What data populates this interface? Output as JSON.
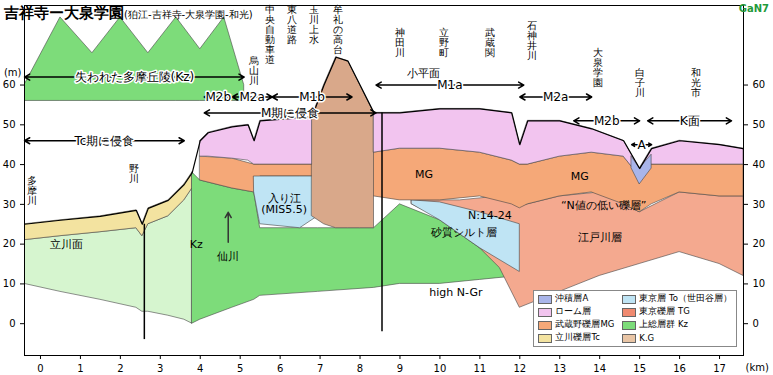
{
  "chart_data": {
    "type": "area",
    "title": "吉祥寺ー大泉学園",
    "subtitle": "(狛江-吉祥寺-大泉学園-和光)",
    "logo": "GaN7",
    "x_label": "(km)",
    "y_label": "(m)",
    "xlim": [
      -0.4,
      17.6
    ],
    "ylim": [
      -8,
      80
    ],
    "xticks": [
      0,
      1,
      2,
      3,
      4,
      5,
      6,
      7,
      8,
      9,
      10,
      11,
      12,
      13,
      14,
      15,
      16,
      17
    ],
    "yticks": [
      0,
      10,
      20,
      30,
      40,
      50,
      60
    ],
    "grid": false,
    "legend": "bottom-right",
    "legend_items": [
      {
        "name": "沖積層A",
        "color": "#a9b5ea"
      },
      {
        "name": "東京層 To（世田谷層）",
        "color": "#bfe4f4"
      },
      {
        "name": "ローム層",
        "color": "#f2c4ef"
      },
      {
        "name": "東京礫層 TG",
        "color": "#f08a70"
      },
      {
        "name": "武蔵野礫層MG",
        "color": "#f5a878"
      },
      {
        "name": "上総層群 Kz",
        "color": "#7ddc7a"
      },
      {
        "name": "立川礫層Tc",
        "color": "#f3e3a0"
      },
      {
        "name": "K.G",
        "color": "#e9c5a5"
      }
    ],
    "layers": [
      {
        "color": "#7ddc7a",
        "x": [
          -0.4,
          0.5,
          1.3,
          2.0,
          2.7,
          3.4,
          4.0,
          4.6,
          5.1
        ],
        "top": [
          60,
          77,
          68,
          77,
          68,
          77,
          69,
          77,
          60
        ],
        "bottom": [
          56,
          56,
          56,
          56,
          56,
          56,
          56,
          56,
          56
        ]
      },
      {
        "color": "#d6f5cf",
        "x": [
          -0.4,
          0.5,
          1.5,
          2.4,
          2.55,
          2.7,
          3.2,
          3.6,
          3.8
        ],
        "top": [
          21,
          22,
          23,
          24,
          22,
          25,
          27,
          31,
          34
        ],
        "bottom": [
          10,
          8,
          6,
          4,
          3,
          3,
          2,
          1,
          0
        ]
      },
      {
        "color": "#f3e3a0",
        "x": [
          -0.4,
          0.5,
          1.5,
          2.4,
          2.55,
          2.7,
          3.2,
          3.6,
          3.8
        ],
        "top": [
          25,
          26,
          27,
          28.5,
          25,
          29,
          31,
          35,
          38
        ],
        "bottom": [
          21,
          22,
          23,
          24,
          22,
          25,
          27,
          31,
          34
        ]
      },
      {
        "color": "#7ddc7a",
        "x": [
          3.8,
          4.0,
          4.8,
          5.35,
          5.5,
          6.95,
          8.35,
          9,
          10,
          11,
          12
        ],
        "top": [
          38,
          36,
          34,
          33,
          24,
          24,
          24,
          30,
          26,
          19,
          12
        ],
        "bottom": [
          0,
          1,
          4,
          6,
          7,
          8,
          9,
          10,
          10,
          11,
          12
        ]
      },
      {
        "color": "#f4a98f",
        "x": [
          9.3,
          10.5,
          11.5,
          12,
          13,
          14,
          15,
          16,
          17,
          17.6
        ],
        "top": [
          31,
          31,
          32,
          29.5,
          32,
          33,
          28,
          33,
          32,
          32
        ],
        "bottom": [
          30,
          24,
          14,
          4,
          8,
          12,
          15,
          18,
          15,
          12
        ]
      },
      {
        "color": "#bfe4f4",
        "x": [
          9.3,
          10,
          11,
          12
        ],
        "top": [
          31,
          30.5,
          28,
          25
        ],
        "bottom": [
          30,
          26,
          19,
          13
        ]
      },
      {
        "color": "#f5a878",
        "x": [
          4.0,
          4.8,
          5.35,
          5.5,
          6.8,
          8.35,
          9,
          10,
          11,
          11.8,
          12.0,
          12.2,
          13,
          13.8,
          14.6,
          15.0,
          15.3,
          16,
          17,
          17.6
        ],
        "top": [
          42,
          41.5,
          40,
          40,
          40,
          43,
          44,
          44,
          43,
          41,
          40,
          40,
          42,
          43,
          42,
          37,
          40,
          40,
          40,
          40
        ],
        "bottom": [
          36,
          34,
          33,
          37,
          37,
          32,
          31,
          31,
          32,
          30,
          29,
          30,
          32,
          33,
          30,
          28,
          30,
          33,
          32,
          32
        ]
      },
      {
        "color": "#bfe4f4",
        "x": [
          5.35,
          5.5,
          6.5,
          6.95
        ],
        "top": [
          37,
          37,
          37,
          37
        ],
        "bottom": [
          33,
          25,
          24,
          27
        ]
      },
      {
        "color": "#d9a88a",
        "x": [
          6.8,
          7.1,
          7.4,
          7.7,
          8.0,
          8.35
        ],
        "top": [
          52,
          60,
          67,
          66,
          60,
          53
        ],
        "bottom": [
          27,
          25,
          24,
          24,
          24,
          24
        ]
      },
      {
        "color": "#f2c4ef",
        "x": [
          4.0,
          4.2,
          4.8,
          5.2,
          5.35,
          5.5,
          6.8
        ],
        "top": [
          46,
          48,
          49.5,
          50,
          46,
          51,
          52
        ],
        "bottom": [
          42,
          42,
          41.5,
          41,
          40,
          40,
          40
        ]
      },
      {
        "color": "#f2c4ef",
        "x": [
          8.35,
          9,
          10,
          11,
          11.8,
          12.0,
          12.2,
          13,
          13.8,
          14.6,
          15.0,
          15.3,
          16,
          17,
          17.6
        ],
        "top": [
          53,
          53,
          54,
          54,
          53,
          45,
          51,
          51,
          49,
          46,
          39,
          44,
          46,
          45,
          44
        ],
        "bottom": [
          43,
          44,
          44,
          43,
          41,
          40,
          40,
          42,
          43,
          42,
          37,
          40,
          40,
          40,
          40
        ]
      },
      {
        "color": "#a9b5ea",
        "x": [
          14.8,
          15.0,
          15.3
        ],
        "top": [
          42,
          39,
          42.5
        ],
        "bottom": [
          39,
          35,
          39
        ]
      }
    ],
    "surface": {
      "x": [
        -0.4,
        0.5,
        1.5,
        2.4,
        2.55,
        2.7,
        3.2,
        3.6,
        3.8,
        4.0,
        4.2,
        4.8,
        5.2,
        5.35,
        5.5,
        6.8,
        7.1,
        7.4,
        7.7,
        8.0,
        8.35,
        9,
        10,
        11,
        11.8,
        12.0,
        12.2,
        13,
        13.8,
        14.6,
        15.0,
        15.3,
        16,
        17,
        17.6
      ],
      "y": [
        25,
        26,
        27,
        28.5,
        25,
        29,
        31,
        35,
        38,
        46,
        48,
        49.5,
        50,
        46,
        51,
        52,
        60,
        67,
        66,
        60,
        53,
        53,
        54,
        54,
        53,
        45,
        51,
        51,
        49,
        46,
        39,
        44,
        46,
        45,
        44
      ]
    },
    "lines": [
      {
        "x": 2.6,
        "y1": -4,
        "y2": 25
      },
      {
        "x": 8.55,
        "y1": -2,
        "y2": 53
      }
    ],
    "spans": [
      {
        "label": "失われた多摩丘陵(Kz)",
        "x1": -0.4,
        "x2": 5.1,
        "y": 62
      },
      {
        "label": "M2b",
        "x1": 4.1,
        "x2": 4.8,
        "y": 57
      },
      {
        "label": "M2a",
        "x1": 4.8,
        "x2": 5.8,
        "y": 57
      },
      {
        "label": "M1b",
        "x1": 5.8,
        "x2": 7.8,
        "y": 57
      },
      {
        "label": "M期に侵食",
        "x1": 4.1,
        "x2": 8.4,
        "y": 53
      },
      {
        "label": "Tc期に侵食",
        "x1": -0.4,
        "x2": 3.6,
        "y": 46
      },
      {
        "label": "M1a",
        "x1": 8.4,
        "x2": 12.1,
        "y": 60
      },
      {
        "label": "M2a",
        "x1": 12.0,
        "x2": 13.8,
        "y": 57
      },
      {
        "label": "M2b",
        "x1": 13.35,
        "x2": 15.0,
        "y": 51
      },
      {
        "label": "A",
        "x1": 14.8,
        "x2": 15.3,
        "y": 45
      },
      {
        "label": "K面",
        "x1": 15.2,
        "x2": 17.3,
        "y": 51
      }
    ],
    "arrows": [
      {
        "x1": 4.7,
        "y1": 20.5,
        "x2": 4.7,
        "y2": 28
      }
    ],
    "vertical_labels": [
      {
        "text": "烏山川",
        "x": 5.35,
        "y": 67
      },
      {
        "text": "中央自動車道",
        "x": 5.75,
        "y": 80
      },
      {
        "text": "東八道路",
        "x": 6.3,
        "y": 80
      },
      {
        "text": "玉川上水",
        "x": 6.85,
        "y": 80
      },
      {
        "text": "牟礼の高台",
        "x": 7.45,
        "y": 80
      },
      {
        "text": "神田川",
        "x": 9.0,
        "y": 74
      },
      {
        "text": "立野町",
        "x": 10.1,
        "y": 74
      },
      {
        "text": "武蔵関",
        "x": 11.25,
        "y": 74
      },
      {
        "text": "石神井川",
        "x": 12.3,
        "y": 76
      },
      {
        "text": "大泉学園",
        "x": 13.95,
        "y": 69
      },
      {
        "text": "白子川",
        "x": 15.0,
        "y": 64
      },
      {
        "text": "和光市",
        "x": 16.4,
        "y": 64
      },
      {
        "text": "多摩川",
        "x": -0.2,
        "y": 37
      },
      {
        "text": "野川",
        "x": 2.35,
        "y": 40
      }
    ],
    "annotations": [
      {
        "text": "小平面",
        "x": 9.6,
        "y": 63
      },
      {
        "text": "立川面",
        "x": 0.65,
        "y": 20
      },
      {
        "text": "Kz",
        "x": 3.9,
        "y": 20
      },
      {
        "text": "仙川",
        "x": 4.7,
        "y": 17
      },
      {
        "text": "入り江\n(MIS5.5)",
        "x": 6.1,
        "y": 30
      },
      {
        "text": "MG",
        "x": 9.6,
        "y": 37.5
      },
      {
        "text": "MG",
        "x": 13.5,
        "y": 37
      },
      {
        "text": "N:14-24",
        "x": 11.25,
        "y": 27.3
      },
      {
        "text": "砂質シルト層",
        "x": 10.6,
        "y": 23
      },
      {
        "text": "“N値の低い礫層”",
        "x": 14.1,
        "y": 29.6
      },
      {
        "text": "江戸川層",
        "x": 14.0,
        "y": 21.6
      },
      {
        "text": "high N-Gr",
        "x": 10.4,
        "y": 7.8
      }
    ]
  }
}
